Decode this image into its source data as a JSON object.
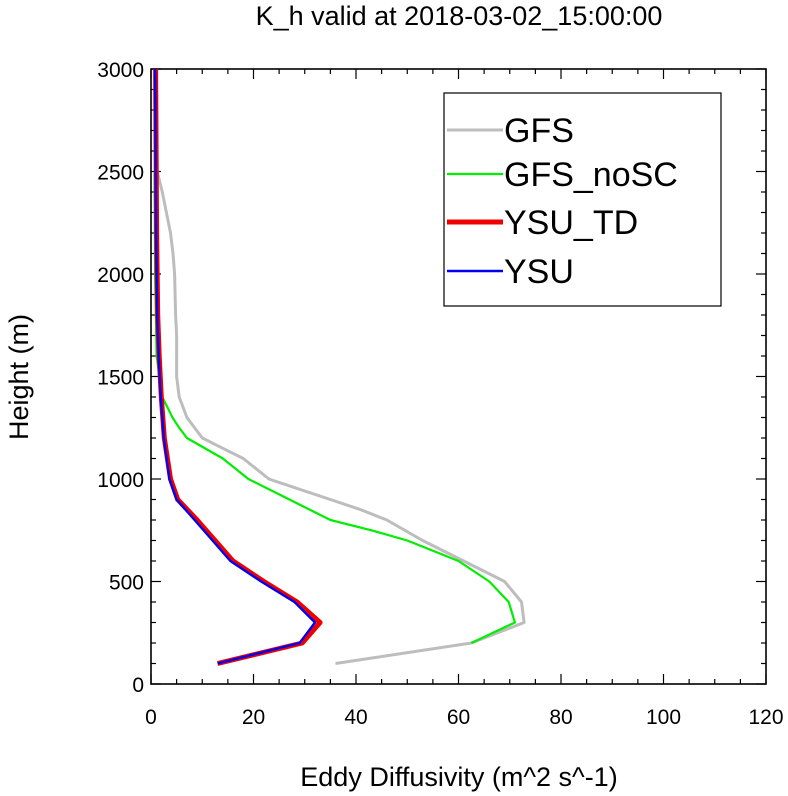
{
  "chart_data": {
    "type": "line",
    "title": "K_h valid at 2018-03-02_15:00:00",
    "xlabel": "Eddy Diffusivity (m^2 s^-1)",
    "ylabel": "Height (m)",
    "xlim": [
      0,
      120
    ],
    "ylim": [
      0,
      3000
    ],
    "x_ticks": [
      0,
      20,
      40,
      60,
      80,
      100,
      120
    ],
    "y_ticks": [
      0,
      500,
      1000,
      1500,
      2000,
      2500,
      3000
    ],
    "x_tick_labels": [
      "0",
      "20",
      "40",
      "60",
      "80",
      "100",
      "120"
    ],
    "y_tick_labels": [
      "0",
      "500",
      "1000",
      "1500",
      "2000",
      "2500",
      "3000"
    ],
    "grid": false,
    "legend_position": "top-right",
    "series": [
      {
        "name": "GFS",
        "color": "#bdbdbd",
        "x": [
          36,
          62.5,
          72.8,
          72.3,
          69,
          61,
          53,
          46,
          41,
          35,
          29,
          23,
          18,
          14,
          10,
          7,
          5.5,
          5,
          5,
          4.8,
          4.6,
          4.3,
          3.8,
          3.0,
          2.2,
          1.2
        ],
        "y": [
          100,
          200,
          300,
          400,
          500,
          600,
          700,
          800,
          850,
          900,
          950,
          1000,
          1100,
          1150,
          1200,
          1300,
          1400,
          1500,
          1700,
          1800,
          2000,
          2100,
          2200,
          2300,
          2400,
          2500
        ]
      },
      {
        "name": "GFS_noSC",
        "color": "#00ee00",
        "x": [
          62.5,
          71,
          69.8,
          66,
          60,
          50,
          43,
          35,
          27,
          19,
          14,
          7,
          5.5,
          4.2,
          2.2,
          1.1,
          0.8,
          0.7
        ],
        "y": [
          200,
          300,
          400,
          500,
          600,
          700,
          750,
          800,
          900,
          1000,
          1100,
          1200,
          1250,
          1300,
          1400,
          1600,
          2000,
          2500
        ]
      },
      {
        "name": "YSU_TD",
        "color": "#ee0000",
        "x": [
          13,
          29.5,
          33,
          28.5,
          22,
          16,
          9,
          5.2,
          3.8,
          2.6,
          2.0,
          1.6,
          1.3,
          1.1,
          1.0,
          0.9
        ],
        "y": [
          100,
          200,
          300,
          400,
          500,
          600,
          800,
          900,
          1000,
          1200,
          1400,
          1600,
          1800,
          2200,
          2600,
          3000
        ]
      },
      {
        "name": "YSU",
        "color": "#0000ee",
        "x": [
          13,
          29,
          32,
          28,
          21.5,
          15.5,
          8.5,
          5,
          3.6,
          2.5,
          1.9,
          1.5,
          1.2,
          1.0,
          0.9,
          0.8
        ],
        "y": [
          100,
          200,
          300,
          400,
          500,
          600,
          800,
          900,
          1000,
          1200,
          1400,
          1600,
          1800,
          2200,
          2600,
          3000
        ]
      }
    ]
  }
}
